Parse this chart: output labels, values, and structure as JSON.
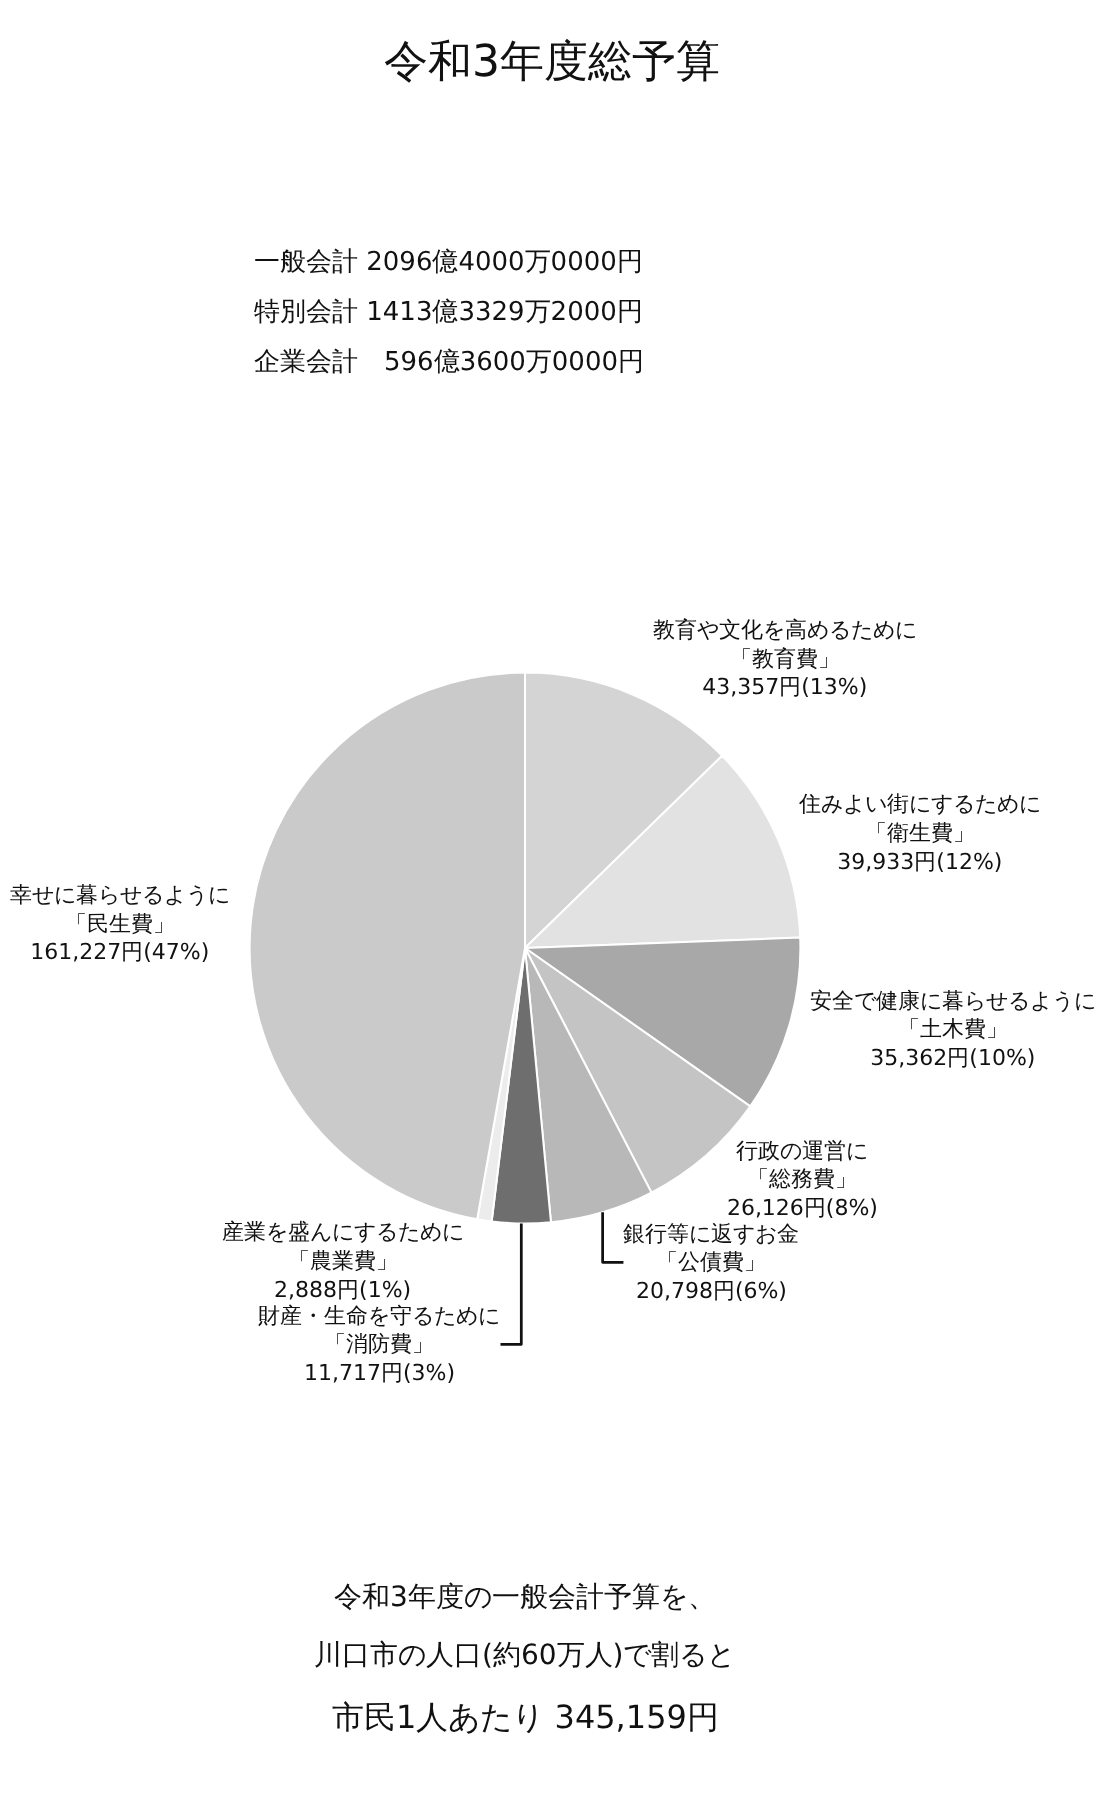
{
  "chart_data": {
    "type": "pie",
    "title": "令和3年度総予算",
    "categories": [
      "教育や文化を高めるために「教育費」",
      "住みよい街にするために「衛生費」",
      "安全で健康に暮らせるように「土木費」",
      "行政の運営に「総務費」",
      "銀行等に返すお金「公債費」",
      "財産・生命を守るために「消防費」",
      "産業を盛んにするために「農業費」",
      "幸せに暮らせるように「民生費」"
    ],
    "values": [
      43357,
      39933,
      35362,
      26126,
      20798,
      11717,
      2888,
      161227
    ],
    "value_labels": [
      "43,357円(13%)",
      "39,933円(12%)",
      "35,362円(10%)",
      "26,126円(8%)",
      "20,798円(6%)",
      "11,717円(3%)",
      "2,888円(1%)",
      "161,227円(47%)"
    ],
    "colors": [
      "#d4d4d4",
      "#e2e2e2",
      "#a8a8a8",
      "#c4c4c4",
      "#b8b8b8",
      "#6e6e6e",
      "#ececec",
      "#cacaca"
    ],
    "annotations": [
      "一般会計 2096億4000万0000円",
      "特別会計 1413億3329万2000円",
      "企業会計　596億3600万0000円",
      "令和3年度の一般会計予算を、",
      "川口市の人口(約60万人)で割ると",
      "市民1人あたり 345,159円"
    ]
  }
}
